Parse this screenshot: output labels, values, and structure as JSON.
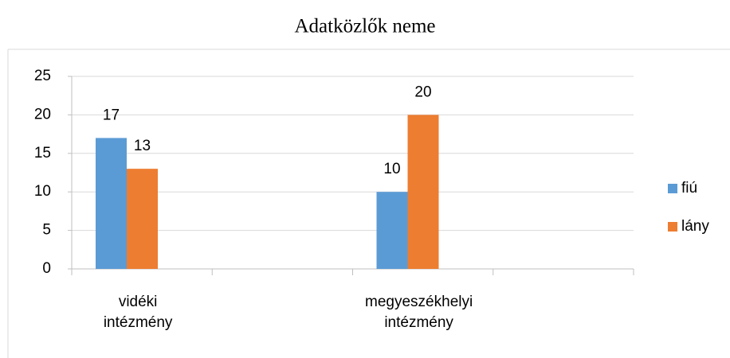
{
  "chart_data": {
    "type": "bar",
    "title": "Adatközlők neme",
    "categories": [
      "vidéki intézmény",
      null,
      "megyeszékhelyi intézmény",
      null
    ],
    "series": [
      {
        "name": "fiú",
        "color": "#5b9bd5",
        "values": [
          17,
          null,
          10,
          null
        ]
      },
      {
        "name": "lány",
        "color": "#ed7d31",
        "values": [
          13,
          null,
          20,
          null
        ]
      }
    ],
    "ylim": [
      0,
      25
    ],
    "yticks": [
      0,
      5,
      10,
      15,
      20,
      25
    ],
    "grid": true,
    "legend": "right",
    "data_labels": true
  }
}
